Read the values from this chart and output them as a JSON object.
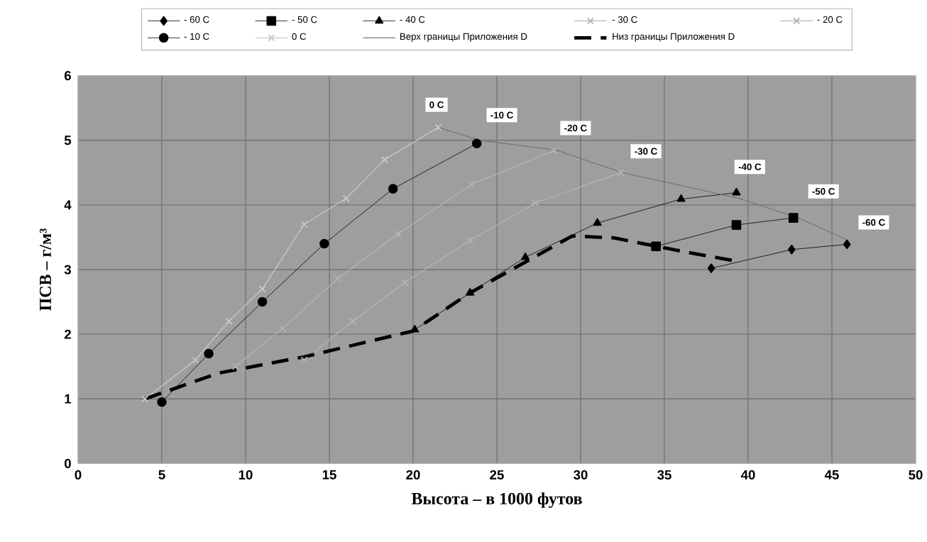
{
  "chart_data": {
    "type": "line",
    "xlabel": "Высота – в 1000 футов",
    "ylabel": "ПСВ – г/м³",
    "xlim": [
      0,
      50
    ],
    "xticks": [
      0,
      5,
      10,
      15,
      20,
      25,
      30,
      35,
      40,
      45,
      50
    ],
    "ylim": [
      0,
      6
    ],
    "yticks": [
      0,
      1,
      2,
      3,
      4,
      5,
      6
    ],
    "grid": true,
    "legend": "top",
    "series": [
      {
        "name": "- 60 C",
        "color": "#000000",
        "marker": "diamond",
        "line_style": "solid",
        "x": [
          37.8,
          42.6,
          45.9
        ],
        "values": [
          3.02,
          3.31,
          3.39
        ]
      },
      {
        "name": "- 50 C",
        "color": "#000000",
        "marker": "square",
        "line_style": "solid",
        "x": [
          34.5,
          39.3,
          42.7
        ],
        "values": [
          3.36,
          3.69,
          3.8
        ]
      },
      {
        "name": "- 40 C",
        "color": "#000000",
        "marker": "triangle",
        "line_style": "solid",
        "x": [
          20.1,
          23.4,
          26.7,
          31.0,
          36.0,
          39.3
        ],
        "values": [
          2.07,
          2.64,
          3.19,
          3.72,
          4.09,
          4.19
        ]
      },
      {
        "name": "- 30 C",
        "color": "#b4b4b4",
        "marker": "cross",
        "line_style": "solid",
        "x": [
          13.5,
          16.4,
          19.5,
          23.4,
          27.3,
          32.4
        ],
        "values": [
          1.6,
          2.2,
          2.8,
          3.45,
          4.03,
          4.5
        ]
      },
      {
        "name": "- 20 C",
        "color": "#b4b4b4",
        "marker": "cross",
        "line_style": "solid",
        "x": [
          9.4,
          12.2,
          15.5,
          19.1,
          23.5,
          28.4
        ],
        "values": [
          1.5,
          2.09,
          2.86,
          3.55,
          4.32,
          4.84
        ]
      },
      {
        "name": "- 10 C",
        "color": "#000000",
        "marker": "circle",
        "line_style": "solid",
        "x": [
          5.0,
          7.8,
          11.0,
          14.7,
          18.8,
          23.8
        ],
        "values": [
          0.95,
          1.7,
          2.5,
          3.4,
          4.25,
          4.95
        ]
      },
      {
        "name": "0 C",
        "color": "#c8c8c8",
        "marker": "cross",
        "line_style": "solid",
        "x": [
          4.0,
          7.0,
          9.0,
          11.0,
          13.5,
          16.0,
          18.3,
          21.5
        ],
        "values": [
          1.0,
          1.6,
          2.2,
          2.7,
          3.7,
          4.1,
          4.7,
          5.2
        ]
      },
      {
        "name": "Верх границы Приложения D",
        "color": "#787878",
        "marker": "none",
        "line_style": "solid",
        "x": [
          21.5,
          24.0,
          28.5,
          32.5,
          39.5,
          43.0,
          46.0
        ],
        "values": [
          5.2,
          5.0,
          4.85,
          4.5,
          4.1,
          3.8,
          3.45
        ]
      },
      {
        "name": "Низ границы Приложения D",
        "color": "#000000",
        "marker": "none",
        "line_style": "dashed",
        "x": [
          4.0,
          8.4,
          13.5,
          20.0,
          23.4,
          29.5,
          32.0,
          36.3,
          39.1
        ],
        "values": [
          1.0,
          1.4,
          1.65,
          2.05,
          2.64,
          3.52,
          3.49,
          3.27,
          3.14
        ]
      }
    ],
    "annotations": [
      {
        "text": "0 C",
        "x": 21.4,
        "y": 5.55
      },
      {
        "text": "-10 C",
        "x": 25.3,
        "y": 5.39
      },
      {
        "text": "-20 C",
        "x": 29.7,
        "y": 5.19
      },
      {
        "text": "-30 C",
        "x": 33.9,
        "y": 4.83
      },
      {
        "text": "-40 C",
        "x": 40.1,
        "y": 4.59
      },
      {
        "text": "-50 C",
        "x": 44.5,
        "y": 4.21
      },
      {
        "text": "-60 C",
        "x": 47.5,
        "y": 3.73
      }
    ]
  }
}
